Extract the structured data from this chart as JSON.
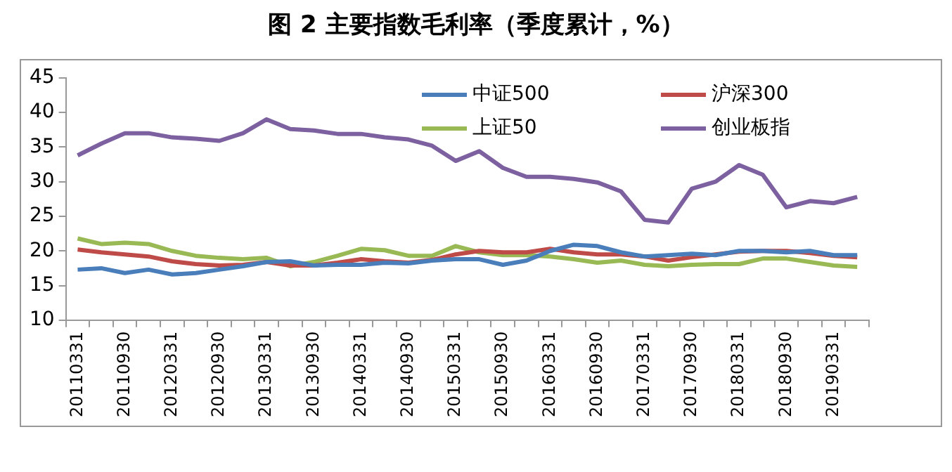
{
  "chart_data": {
    "type": "line",
    "title": "图 2  主要指数毛利率（季度累计，%）",
    "categories": [
      "20110331",
      null,
      "20110930",
      null,
      "20120331",
      null,
      "20120930",
      null,
      "20130331",
      null,
      "20130930",
      null,
      "20140331",
      null,
      "20140930",
      null,
      "20150331",
      null,
      "20150930",
      null,
      "20160331",
      null,
      "20160930",
      null,
      "20170331",
      null,
      "20170930",
      null,
      "20180331",
      null,
      "20180930",
      null,
      "20190331",
      null
    ],
    "series": [
      {
        "name": "中证500",
        "color": "#4a7ebb",
        "values": [
          17.3,
          17.5,
          16.8,
          17.3,
          16.6,
          16.8,
          17.3,
          17.8,
          18.4,
          18.5,
          17.9,
          18,
          18,
          18.3,
          18.2,
          18.6,
          18.8,
          18.8,
          18,
          18.6,
          20,
          20.9,
          20.7,
          19.8,
          19.2,
          19.4,
          19.6,
          19.4,
          20,
          20,
          19.8,
          20,
          19.4,
          19.4
        ]
      },
      {
        "name": "沪深300",
        "color": "#be4b48",
        "values": [
          20.2,
          19.8,
          19.5,
          19.2,
          18.5,
          18.1,
          17.9,
          18,
          18.4,
          17.9,
          17.9,
          18.3,
          18.8,
          18.5,
          18.3,
          18.7,
          19.5,
          20,
          19.8,
          19.8,
          20.3,
          19.8,
          19.5,
          19.5,
          19.2,
          18.6,
          19.1,
          19.5,
          19.9,
          20,
          20,
          19.7,
          19.3,
          19.1
        ]
      },
      {
        "name": "上证50",
        "color": "#98b954",
        "values": [
          21.8,
          21,
          21.2,
          21,
          20,
          19.3,
          19,
          18.8,
          19,
          17.8,
          18.4,
          19.3,
          20.3,
          20.1,
          19.3,
          19.3,
          20.7,
          19.8,
          19.4,
          19.4,
          19.2,
          18.8,
          18.3,
          18.6,
          18,
          17.8,
          18,
          18.1,
          18.1,
          18.9,
          18.9,
          18.4,
          17.9,
          17.7
        ]
      },
      {
        "name": "创业板指",
        "color": "#7d60a0",
        "values": [
          33.8,
          35.5,
          37,
          37,
          36.4,
          36.2,
          35.9,
          37,
          39,
          37.6,
          37.4,
          36.9,
          36.9,
          36.4,
          36.1,
          35.2,
          33,
          34.4,
          32,
          30.7,
          30.7,
          30.4,
          29.9,
          28.6,
          24.5,
          24.1,
          29,
          30,
          32.4,
          31,
          26.3,
          27.2,
          26.9,
          27.8
        ]
      }
    ],
    "ylim": [
      10,
      45
    ],
    "yticks": [
      10,
      15,
      20,
      25,
      30,
      35,
      40,
      45
    ],
    "grid": false,
    "legend": "top right"
  }
}
